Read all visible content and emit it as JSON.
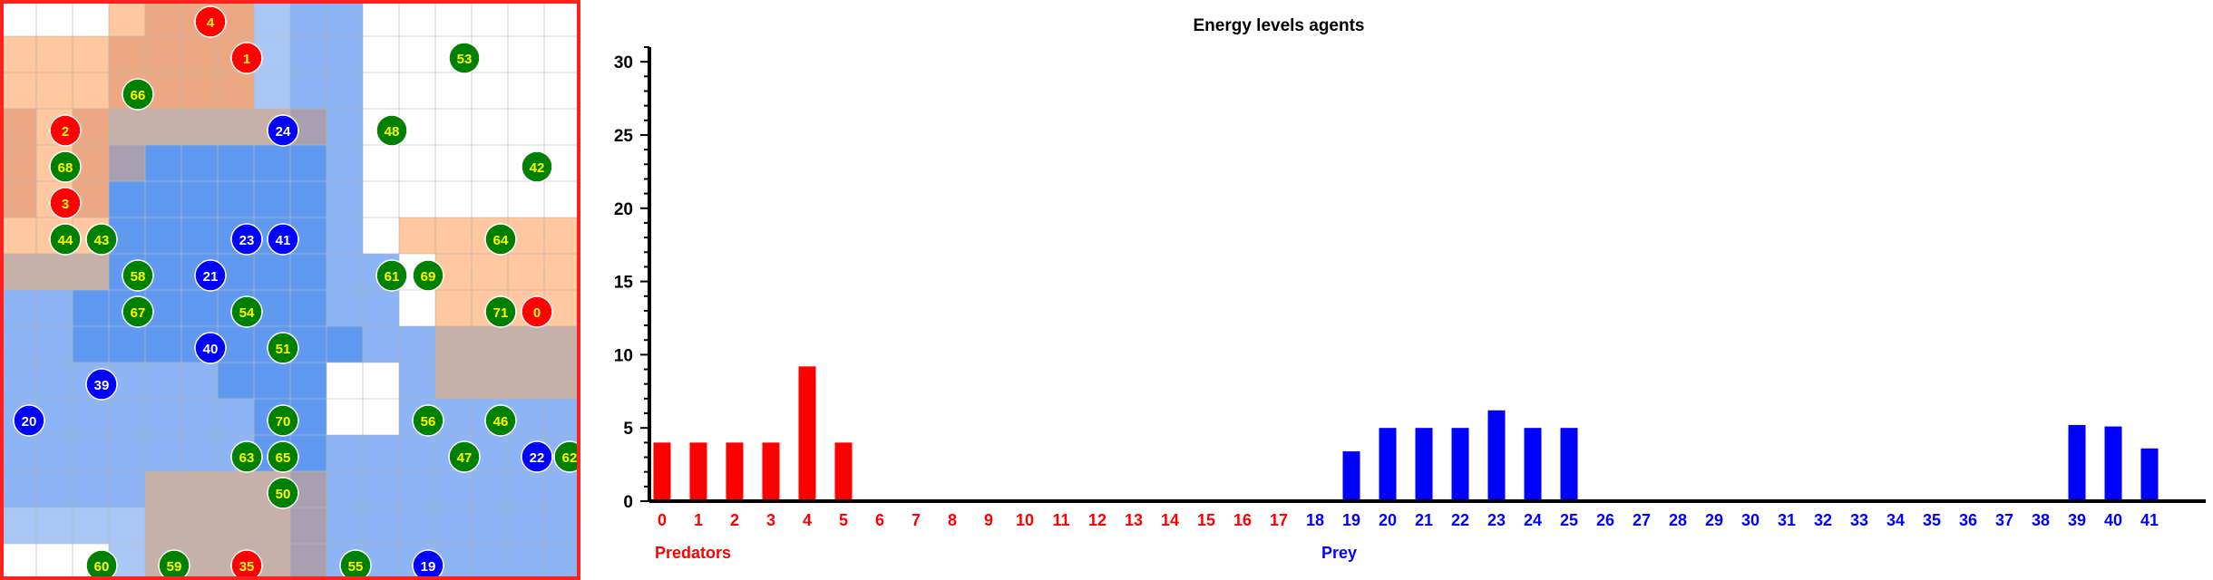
{
  "grid": {
    "rows": 16,
    "cols": 16,
    "colors": {
      "empty": "#ffffff",
      "gridline": "#b8b8b8",
      "border": "#ff2020",
      "predator": "#ff0000",
      "prey": "#0000ff",
      "food": "#008000",
      "label": "#ffff00"
    },
    "cells": [
      "WWWaAAAbBBWWWWWW",
      "aaaAAAAbBBWWWWWW",
      "aaaAAAAbBBWWWWWW",
      "AaAcccccdBWWWWWW",
      "AaAdDDDDDBWWWWWW",
      "AaADDDDDDBWWWWWW",
      "aaaDDDDDDBWaaaaa",
      "cccDDDDDDBBWaaaa",
      "BBDDDDDDDBBWaaaa",
      "BBDDDDDDDDBBcccc",
      "BBBBBBDDDWWBcccc",
      "BBBBBBBDDWWBBBBB",
      "BBBBBBBDDBBBBBBB",
      "BBBBccccdBBBBBBB",
      "bbbbccccdBBBBBBB",
      "WWWbccccdBBBBBBB"
    ],
    "palette": {
      "W": "#ffffff",
      "a": "#ffc8a0",
      "A": "#eca882",
      "b": "#aac6f5",
      "B": "#8db4f5",
      "c": "#c6b0a8",
      "d": "#a8a0b0",
      "D": "#5f99f0"
    },
    "agents": [
      {
        "id": "4",
        "kind": "predator",
        "row": 0,
        "col": 5
      },
      {
        "id": "1",
        "kind": "predator",
        "row": 1,
        "col": 6
      },
      {
        "id": "53",
        "kind": "food",
        "row": 1,
        "col": 12
      },
      {
        "id": "66",
        "kind": "food",
        "row": 2,
        "col": 3
      },
      {
        "id": "2",
        "kind": "predator",
        "row": 3,
        "col": 1
      },
      {
        "id": "24",
        "kind": "prey",
        "row": 3,
        "col": 7
      },
      {
        "id": "48",
        "kind": "food",
        "row": 3,
        "col": 10
      },
      {
        "id": "68",
        "kind": "food",
        "row": 4,
        "col": 1
      },
      {
        "id": "42",
        "kind": "food",
        "row": 4,
        "col": 14
      },
      {
        "id": "3",
        "kind": "predator",
        "row": 5,
        "col": 1
      },
      {
        "id": "44",
        "kind": "food",
        "row": 6,
        "col": 1
      },
      {
        "id": "43",
        "kind": "food",
        "row": 6,
        "col": 2
      },
      {
        "id": "23",
        "kind": "prey",
        "row": 6,
        "col": 6
      },
      {
        "id": "41",
        "kind": "prey",
        "row": 6,
        "col": 7
      },
      {
        "id": "64",
        "kind": "food",
        "row": 6,
        "col": 13
      },
      {
        "id": "58",
        "kind": "food",
        "row": 7,
        "col": 3
      },
      {
        "id": "21",
        "kind": "prey",
        "row": 7,
        "col": 5
      },
      {
        "id": "61",
        "kind": "food",
        "row": 7,
        "col": 10
      },
      {
        "id": "69",
        "kind": "food",
        "row": 7,
        "col": 11
      },
      {
        "id": "67",
        "kind": "food",
        "row": 8,
        "col": 3
      },
      {
        "id": "54",
        "kind": "food",
        "row": 8,
        "col": 6
      },
      {
        "id": "71",
        "kind": "food",
        "row": 8,
        "col": 13
      },
      {
        "id": "0",
        "kind": "predator",
        "row": 8,
        "col": 14
      },
      {
        "id": "40",
        "kind": "prey",
        "row": 9,
        "col": 5
      },
      {
        "id": "51",
        "kind": "food",
        "row": 9,
        "col": 7
      },
      {
        "id": "39",
        "kind": "prey",
        "row": 10,
        "col": 2
      },
      {
        "id": "20",
        "kind": "prey",
        "row": 11,
        "col": 0
      },
      {
        "id": "70",
        "kind": "food",
        "row": 11,
        "col": 7
      },
      {
        "id": "56",
        "kind": "food",
        "row": 11,
        "col": 11
      },
      {
        "id": "46",
        "kind": "food",
        "row": 11,
        "col": 13
      },
      {
        "id": "63",
        "kind": "food",
        "row": 12,
        "col": 6
      },
      {
        "id": "65",
        "kind": "food",
        "row": 12,
        "col": 7
      },
      {
        "id": "47",
        "kind": "food",
        "row": 12,
        "col": 12
      },
      {
        "id": "22",
        "kind": "prey",
        "row": 12,
        "col": 14
      },
      {
        "id": "62",
        "kind": "food",
        "row": 12,
        "col": 15
      },
      {
        "id": "50",
        "kind": "food",
        "row": 13,
        "col": 7
      },
      {
        "id": "60",
        "kind": "food",
        "row": 15,
        "col": 2
      },
      {
        "id": "59",
        "kind": "food",
        "row": 15,
        "col": 4
      },
      {
        "id": "35",
        "kind": "predator",
        "row": 15,
        "col": 6
      },
      {
        "id": "55",
        "kind": "food",
        "row": 15,
        "col": 9
      },
      {
        "id": "19",
        "kind": "prey",
        "row": 15,
        "col": 11
      }
    ]
  },
  "chart_data": {
    "type": "bar",
    "title": "Energy levels agents",
    "xlabel": "",
    "ylabel": "",
    "ylim": [
      0,
      31
    ],
    "yticks": [
      0,
      5,
      10,
      15,
      20,
      25,
      30
    ],
    "categories": [
      "0",
      "1",
      "2",
      "3",
      "4",
      "5",
      "6",
      "7",
      "8",
      "9",
      "10",
      "11",
      "12",
      "13",
      "14",
      "15",
      "16",
      "17",
      "18",
      "19",
      "20",
      "21",
      "22",
      "23",
      "24",
      "25",
      "26",
      "27",
      "28",
      "29",
      "30",
      "31",
      "32",
      "33",
      "34",
      "35",
      "36",
      "37",
      "38",
      "39",
      "40",
      "41"
    ],
    "values": [
      4,
      4,
      4,
      4,
      9.2,
      4,
      0,
      0,
      0,
      0,
      0,
      0,
      0,
      0,
      0,
      0,
      0,
      0,
      0,
      3.4,
      5,
      5,
      5,
      6.2,
      5,
      5,
      0,
      0,
      0,
      0,
      0,
      0,
      0,
      0,
      0,
      0,
      0,
      0,
      0,
      5.2,
      5.1,
      3.6
    ],
    "groups": [
      {
        "name": "Predators",
        "color": "#ff0000",
        "range": [
          0,
          17
        ]
      },
      {
        "name": "Prey",
        "color": "#0000ff",
        "range": [
          18,
          41
        ]
      }
    ],
    "grid": false
  }
}
